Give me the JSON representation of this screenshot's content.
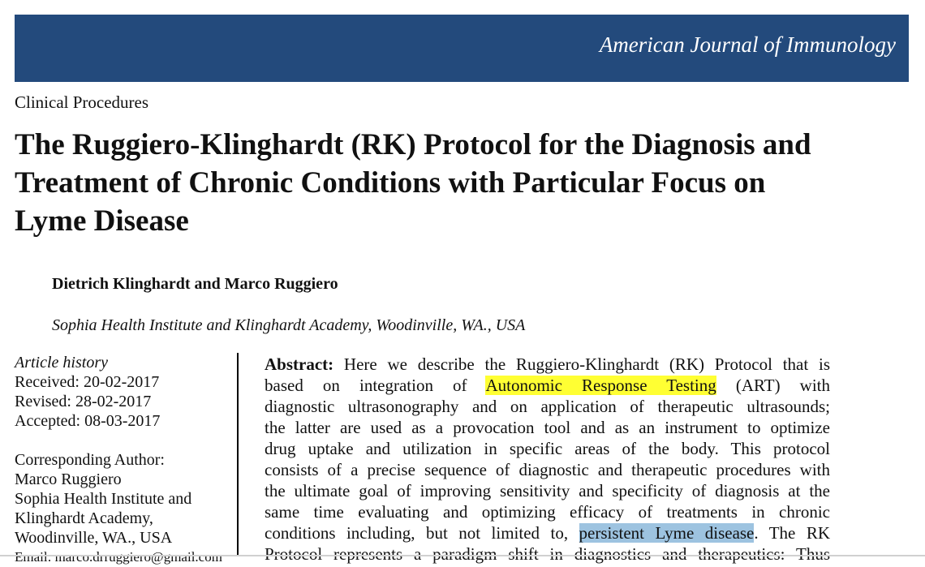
{
  "header": {
    "journal": "American Journal of Immunology",
    "banner_color": "#234a7c"
  },
  "section": "Clinical Procedures",
  "title_lines": [
    "The Ruggiero-Klinghardt (RK) Protocol for the Diagnosis and",
    "Treatment of Chronic Conditions with Particular Focus on",
    "Lyme Disease"
  ],
  "authors": "Dietrich Klinghardt and Marco Ruggiero",
  "affiliation": "Sophia Health Institute and Klinghardt Academy, Woodinville, WA., USA",
  "sidebar": {
    "history_label": "Article history",
    "received": "Received: 20-02-2017",
    "revised": "Revised: 28-02-2017",
    "accepted": "Accepted: 08-03-2017",
    "corr_label": "Corresponding Author:",
    "corr_name": "Marco Ruggiero",
    "corr_addr1": "Sophia Health Institute and",
    "corr_addr2": "Klinghardt Academy,",
    "corr_addr3": "Woodinville, WA., USA",
    "email": "Email: marco.drruggiero@gmail.com"
  },
  "abstract": {
    "label": "Abstract:",
    "l1": " Here we describe the Ruggiero-Klinghardt (RK) Protocol that is",
    "l2a": "based on integration of ",
    "l2hl": "Autonomic Response Testing",
    "l2b": " (ART) with",
    "l3": "diagnostic ultrasonography and on application of therapeutic ultrasounds;",
    "l4": "the latter are used as a provocation tool and as an instrument to optimize",
    "l5": "drug uptake and utilization in specific areas of the body. This protocol",
    "l6": "consists of a precise sequence of diagnostic and therapeutic procedures with",
    "l7": "the ultimate goal of improving sensitivity and specificity of diagnosis at the",
    "l8": "same time evaluating and optimizing efficacy of treatments in chronic",
    "l9a": "conditions including, but not limited to, ",
    "l9hl": "persistent Lyme disease",
    "l9b": ". The RK",
    "l10": "Protocol represents a paradigm shift in diagnostics and therapeutics: Thus",
    "highlight_yellow": "#ffff33",
    "highlight_blue": "#9dc3e0"
  }
}
